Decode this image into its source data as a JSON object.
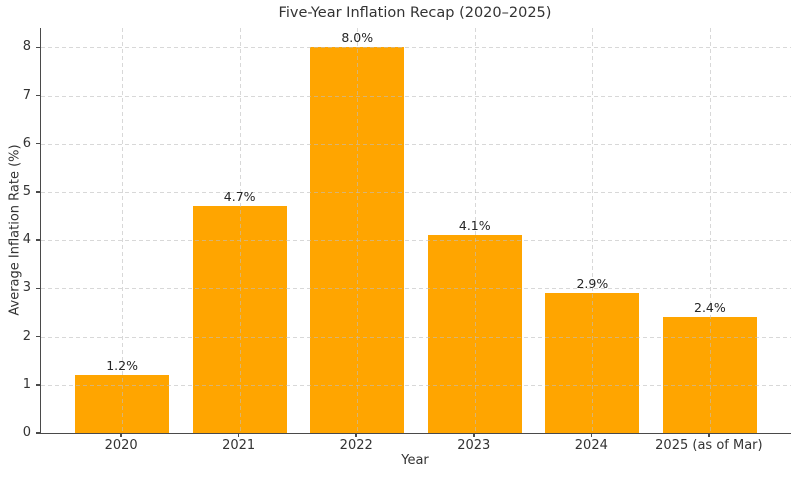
{
  "chart_data": {
    "type": "bar",
    "title": "Five-Year Inflation Recap (2020–2025)",
    "xlabel": "Year",
    "ylabel": "Average Inflation Rate (%)",
    "categories": [
      "2020",
      "2021",
      "2022",
      "2023",
      "2024",
      "2025 (as of Mar)"
    ],
    "values": [
      1.2,
      4.7,
      8.0,
      4.1,
      2.9,
      2.4
    ],
    "bar_labels": [
      "1.2%",
      "4.7%",
      "8.0%",
      "4.1%",
      "2.9%",
      "2.4%"
    ],
    "yticks": [
      0,
      1,
      2,
      3,
      4,
      5,
      6,
      7,
      8
    ],
    "ylim": [
      0,
      8.4
    ],
    "grid": true,
    "legend_position": "none",
    "colors": {
      "bar": "#ffa500",
      "grid_rgba": "rgba(190,190,190,0.6)",
      "spine": "#4a4a4a",
      "text": "#333333"
    }
  }
}
